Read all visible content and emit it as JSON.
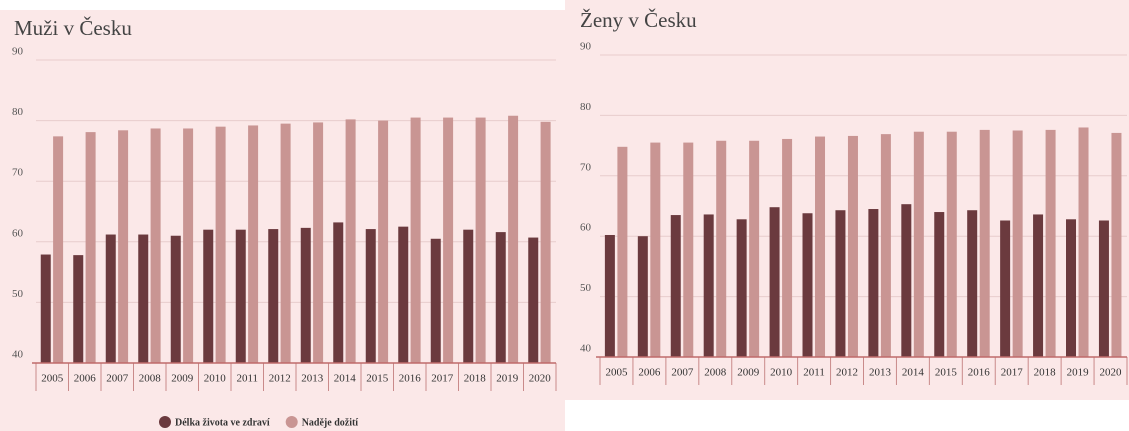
{
  "chart_data": [
    {
      "type": "bar",
      "title": "Muži v Česku",
      "categories": [
        "2005",
        "2006",
        "2007",
        "2008",
        "2009",
        "2010",
        "2011",
        "2012",
        "2013",
        "2014",
        "2015",
        "2016",
        "2017",
        "2018",
        "2019",
        "2020"
      ],
      "series": [
        {
          "name": "Délka života ve zdraví",
          "color": "#6b3a3e",
          "values": [
            57.9,
            57.8,
            61.2,
            61.2,
            61,
            62,
            62,
            62.1,
            62.3,
            63.2,
            62.1,
            62.5,
            60.5,
            62,
            61.6,
            60.7
          ]
        },
        {
          "name": "Naděje dožití",
          "color": "#c99593",
          "values": [
            77.4,
            78.1,
            78.4,
            78.7,
            78.7,
            79,
            79.2,
            79.5,
            79.7,
            80.2,
            80,
            80.5,
            80.5,
            80.5,
            80.8,
            79.8
          ]
        }
      ],
      "ylim": [
        40,
        90
      ],
      "yticks": [
        40,
        50,
        60,
        70,
        80,
        90
      ],
      "grid": true
    },
    {
      "type": "bar",
      "title": "Ženy v Česku",
      "categories": [
        "2005",
        "2006",
        "2007",
        "2008",
        "2009",
        "2010",
        "2011",
        "2012",
        "2013",
        "2014",
        "2015",
        "2016",
        "2017",
        "2018",
        "2019",
        "2020"
      ],
      "series": [
        {
          "name": "Délka života ve zdraví",
          "color": "#6b3a3e",
          "values": [
            60.2,
            60,
            63.5,
            63.6,
            62.8,
            64.8,
            63.8,
            64.3,
            64.5,
            65.3,
            64,
            64.3,
            62.6,
            63.6,
            62.8,
            62.6
          ]
        },
        {
          "name": "Naděje dožití",
          "color": "#c99593",
          "values": [
            74.8,
            75.5,
            75.5,
            75.8,
            75.8,
            76.1,
            76.5,
            76.6,
            76.9,
            77.3,
            77.3,
            77.6,
            77.5,
            77.6,
            78,
            77.1
          ]
        }
      ],
      "ylim": [
        40,
        90
      ],
      "yticks": [
        40,
        50,
        60,
        70,
        80,
        90
      ],
      "grid": true
    }
  ]
}
